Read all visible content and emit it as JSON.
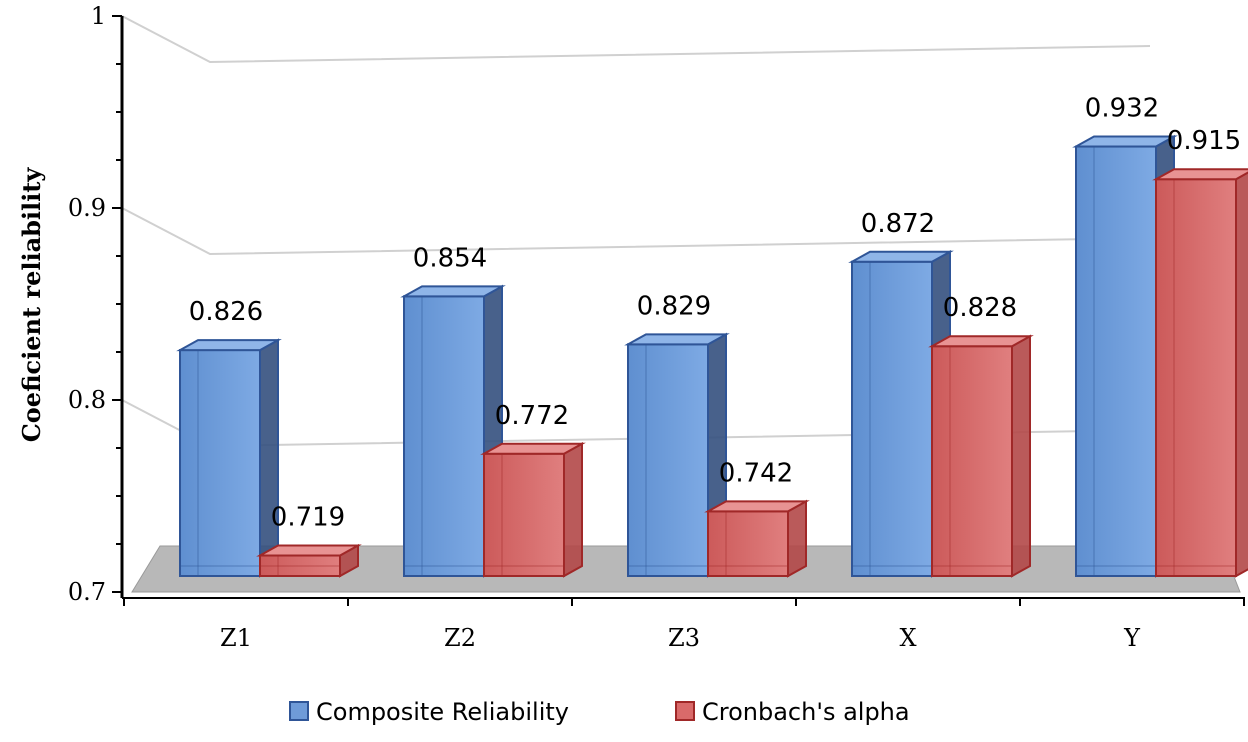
{
  "chart_data": {
    "type": "bar",
    "title": "",
    "xlabel": "",
    "ylabel": "Coeficient reliability",
    "ylim": [
      0.7,
      1
    ],
    "yticks": [
      "0.7",
      "0.8",
      "0.9",
      "1"
    ],
    "categories": [
      "Z1",
      "Z2",
      "Z3",
      "X",
      "Y"
    ],
    "series": [
      {
        "name": "Composite Reliability",
        "values": [
          0.826,
          0.854,
          0.829,
          0.872,
          0.932
        ],
        "labels": [
          "0.826",
          "0.854",
          "0.829",
          "0.872",
          "0.932"
        ],
        "color": "#6f9bd8",
        "edge": "#2f5597"
      },
      {
        "name": "Cronbach's alpha",
        "values": [
          0.719,
          0.772,
          0.742,
          0.828,
          0.915
        ],
        "labels": [
          "0.719",
          "0.772",
          "0.742",
          "0.828",
          "0.915"
        ],
        "color": "#d96a6a",
        "edge": "#a02828"
      }
    ],
    "legend_position": "bottom",
    "grid": true
  }
}
